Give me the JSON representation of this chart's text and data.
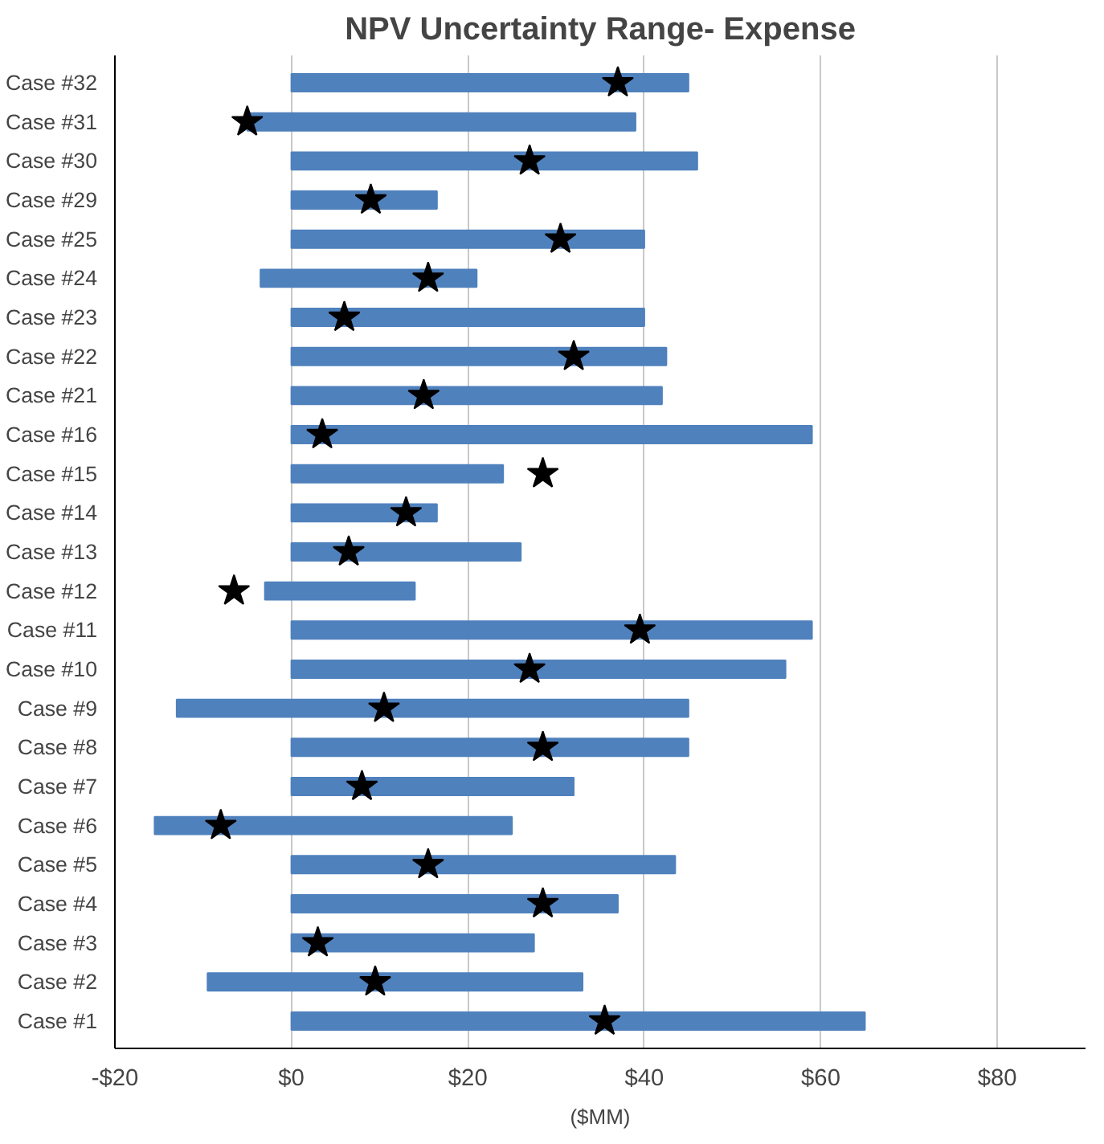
{
  "chart_data": {
    "type": "bar",
    "orientation": "horizontal",
    "title": "NPV Uncertainty Range- Expense",
    "xlabel": "($MM)",
    "categories": [
      "Case #32",
      "Case #31",
      "Case #30",
      "Case #29",
      "Case #25",
      "Case #24",
      "Case #23",
      "Case #22",
      "Case #21",
      "Case #16",
      "Case #15",
      "Case #14",
      "Case #13",
      "Case #12",
      "Case #11",
      "Case #10",
      "Case #9",
      "Case #8",
      "Case #7",
      "Case #6",
      "Case #5",
      "Case #4",
      "Case #3",
      "Case #2",
      "Case #1"
    ],
    "series": [
      {
        "color": "#4f81bd",
        "base": [
          0,
          -5,
          0,
          0,
          0,
          -3.5,
          0,
          0,
          0,
          0,
          0,
          0,
          0,
          -3,
          0,
          0,
          -13,
          0,
          0,
          -15.5,
          0,
          0,
          0,
          -9.5,
          0
        ],
        "values": [
          45,
          44,
          46,
          16.5,
          40,
          24.5,
          40,
          42.5,
          42,
          59,
          24,
          16.5,
          26,
          17,
          59,
          56,
          58,
          45,
          32,
          40.5,
          43.5,
          37,
          27.5,
          42.5,
          65
        ]
      },
      {
        "type": "scatter",
        "marker": "star",
        "color": "#000000",
        "values": [
          37,
          -5,
          27,
          9,
          30.5,
          15.5,
          6,
          32,
          15,
          3.5,
          28.5,
          13,
          6.5,
          -6.5,
          39.5,
          27,
          10.5,
          28.5,
          8,
          -8,
          15.5,
          28.5,
          3,
          9.5,
          35.5
        ]
      }
    ],
    "xlim": [
      -20,
      90
    ],
    "xticks": [
      {
        "value": -20,
        "label": "-$20"
      },
      {
        "value": 0,
        "label": "$0"
      },
      {
        "value": 20,
        "label": "$20"
      },
      {
        "value": 40,
        "label": "$40"
      },
      {
        "value": 60,
        "label": "$60"
      },
      {
        "value": 80,
        "label": "$80"
      }
    ],
    "grid": "x"
  }
}
